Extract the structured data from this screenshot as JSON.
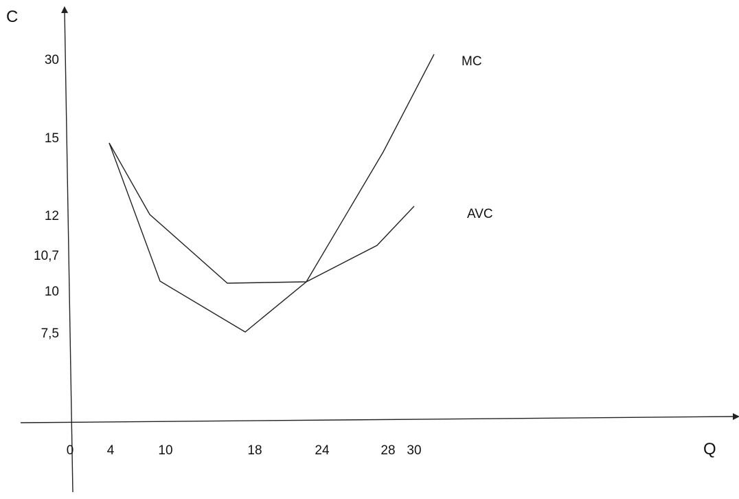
{
  "chart_data": {
    "type": "line",
    "title": "",
    "xlabel": "Q",
    "ylabel": "C",
    "x_ticks": [
      {
        "label": "0",
        "value": 0
      },
      {
        "label": "4",
        "value": 4
      },
      {
        "label": "10",
        "value": 10
      },
      {
        "label": "18",
        "value": 18
      },
      {
        "label": "24",
        "value": 24
      },
      {
        "label": "28",
        "value": 28
      },
      {
        "label": "30",
        "value": 30
      }
    ],
    "y_ticks": [
      {
        "label": "30",
        "value": 30
      },
      {
        "label": "15",
        "value": 15
      },
      {
        "label": "12",
        "value": 12
      },
      {
        "label": "10,7",
        "value": 10.7
      },
      {
        "label": "10",
        "value": 10
      },
      {
        "label": "7,5",
        "value": 7.5
      }
    ],
    "series": [
      {
        "name": "MC",
        "points": [
          {
            "x": 4,
            "y": 15
          },
          {
            "x": 10,
            "y": 10
          },
          {
            "x": 18,
            "y": 7.5
          },
          {
            "x": 24,
            "y": 10
          },
          {
            "x": 28,
            "y": 15
          },
          {
            "x": 30,
            "y": 30
          }
        ]
      },
      {
        "name": "AVC",
        "points": [
          {
            "x": 4,
            "y": 15
          },
          {
            "x": 10,
            "y": 12
          },
          {
            "x": 18,
            "y": 10
          },
          {
            "x": 24,
            "y": 10
          },
          {
            "x": 28,
            "y": 10.7
          },
          {
            "x": 30,
            "y": 12
          }
        ]
      }
    ],
    "grid": false,
    "legend": "labels next to line ends"
  }
}
